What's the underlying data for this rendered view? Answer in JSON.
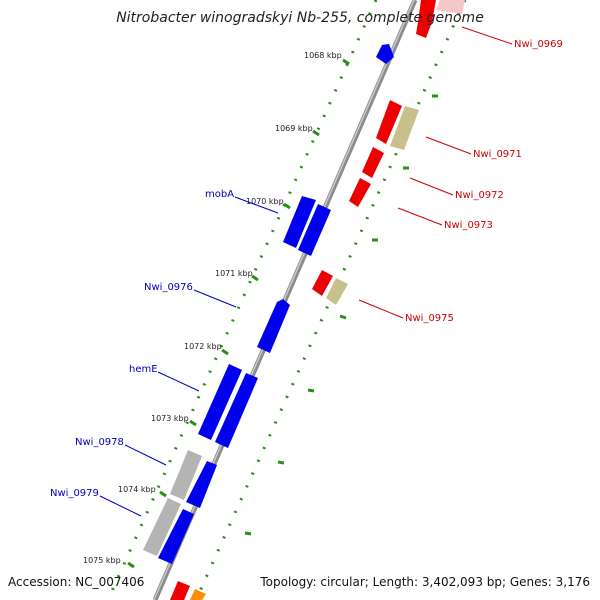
{
  "title": "Nitrobacter winogradskyi Nb-255, complete genome",
  "accession": "Accession: NC_007406",
  "summary": "Topology: circular; Length: 3,402,093 bp; Genes: 3,176",
  "colors": {
    "backbone": "#8c8c8c",
    "tick": "#2e8b1e",
    "dot": "#2e8b1e",
    "gene_blue": "#0000ee",
    "gene_red": "#ee0000",
    "gene_grey": "#b4b4b4",
    "gene_khaki": "#c8c08c",
    "gene_orange": "#ff8c00",
    "label_blue": "#0000bb",
    "label_red": "#cc0000"
  },
  "kbp_ticks": [
    "1068 kbp",
    "1069 kbp",
    "1070 kbp",
    "1071 kbp",
    "1072 kbp",
    "1073 kbp",
    "1074 kbp",
    "1075 kbp"
  ],
  "gene_labels_left": [
    "mobA",
    "Nwi_0976",
    "hemE",
    "Nwi_0978",
    "Nwi_0979"
  ],
  "gene_labels_right": [
    "Nwi_0969",
    "Nwi_0971",
    "Nwi_0972",
    "Nwi_0973",
    "Nwi_0975"
  ]
}
